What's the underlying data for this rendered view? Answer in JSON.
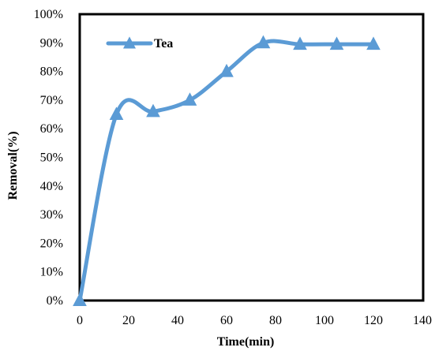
{
  "chart_data": {
    "type": "line",
    "xlabel": "Time(min)",
    "ylabel": "Removal(%)",
    "xlim": [
      0,
      140
    ],
    "ylim": [
      0,
      100
    ],
    "x_ticks": [
      0,
      20,
      40,
      60,
      80,
      100,
      120,
      140
    ],
    "y_ticks": [
      0,
      10,
      20,
      30,
      40,
      50,
      60,
      70,
      80,
      90,
      100
    ],
    "x_tick_labels": [
      "0",
      "20",
      "40",
      "60",
      "80",
      "100",
      "120",
      "140"
    ],
    "y_tick_labels": [
      "0%",
      "10%",
      "20%",
      "30%",
      "40%",
      "50%",
      "60%",
      "70%",
      "80%",
      "90%",
      "100%"
    ],
    "grid": false,
    "legend_position": "top-left",
    "series": [
      {
        "name": "Tea",
        "color": "#5b9bd5",
        "marker": "triangle",
        "smooth": true,
        "x": [
          0,
          15,
          30,
          45,
          60,
          75,
          90,
          105,
          120
        ],
        "y": [
          0,
          65,
          66,
          70,
          80,
          90,
          89.5,
          89.5,
          89.5
        ]
      }
    ]
  }
}
